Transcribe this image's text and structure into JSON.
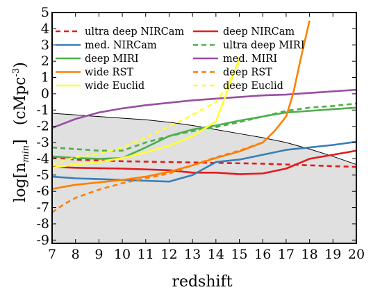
{
  "chart_data": {
    "type": "line",
    "xlabel": "redshift",
    "ylabel_main": "log[n",
    "ylabel_sub": "min",
    "ylabel_close": "]",
    "ylabel_unit_open": "(cMpc",
    "ylabel_unit_sup": "-3",
    "ylabel_unit_close": ")",
    "xlim": [
      7,
      20
    ],
    "ylim": [
      -9.2,
      5
    ],
    "xticks": [
      7,
      8,
      9,
      10,
      11,
      12,
      13,
      14,
      15,
      16,
      17,
      18,
      19,
      20
    ],
    "yticks": [
      5,
      4,
      3,
      2,
      1,
      0,
      -1,
      -2,
      -3,
      -4,
      -5,
      -6,
      -7,
      -8,
      -9
    ],
    "legend_position": "top",
    "shaded_region": {
      "fill": "#e0e0e0",
      "boundary": [
        [
          7,
          -1.2
        ],
        [
          8,
          -1.3
        ],
        [
          9,
          -1.4
        ],
        [
          10,
          -1.5
        ],
        [
          11,
          -1.6
        ],
        [
          12,
          -1.75
        ],
        [
          13,
          -1.95
        ],
        [
          14,
          -2.2
        ],
        [
          15,
          -2.45
        ],
        [
          16,
          -2.7
        ],
        [
          17,
          -3.0
        ],
        [
          18,
          -3.4
        ],
        [
          19,
          -3.85
        ],
        [
          20,
          -4.35
        ]
      ]
    },
    "series": [
      {
        "name": "ultra deep NIRCam",
        "color": "#e41a1c",
        "dash": true,
        "points": [
          [
            7,
            -3.9
          ],
          [
            8,
            -4.05
          ],
          [
            10,
            -4.15
          ],
          [
            12,
            -4.2
          ],
          [
            14,
            -4.25
          ],
          [
            16,
            -4.3
          ],
          [
            18,
            -4.4
          ],
          [
            20,
            -4.5
          ]
        ]
      },
      {
        "name": "deep NIRCam",
        "color": "#e41a1c",
        "dash": false,
        "points": [
          [
            7,
            -4.5
          ],
          [
            8,
            -4.55
          ],
          [
            10,
            -4.6
          ],
          [
            12,
            -4.7
          ],
          [
            13,
            -4.85
          ],
          [
            14,
            -4.85
          ],
          [
            15,
            -4.95
          ],
          [
            16,
            -4.9
          ],
          [
            17,
            -4.6
          ],
          [
            18,
            -4.0
          ],
          [
            19,
            -3.75
          ],
          [
            20,
            -3.5
          ]
        ]
      },
      {
        "name": "med. NIRCam",
        "color": "#377eb8",
        "dash": false,
        "points": [
          [
            7,
            -5.1
          ],
          [
            8,
            -5.2
          ],
          [
            9,
            -5.25
          ],
          [
            10,
            -5.3
          ],
          [
            11,
            -5.35
          ],
          [
            12,
            -5.4
          ],
          [
            13,
            -5.0
          ],
          [
            14,
            -4.2
          ],
          [
            15,
            -4.05
          ],
          [
            16,
            -3.75
          ],
          [
            17,
            -3.45
          ],
          [
            18,
            -3.3
          ],
          [
            19,
            -3.15
          ],
          [
            20,
            -2.95
          ]
        ]
      },
      {
        "name": "ultra deep MIRI",
        "color": "#4daf4a",
        "dash": true,
        "points": [
          [
            7,
            -3.3
          ],
          [
            8,
            -3.4
          ],
          [
            9,
            -3.5
          ],
          [
            10,
            -3.5
          ],
          [
            11,
            -3.0
          ],
          [
            12,
            -2.6
          ],
          [
            13,
            -2.3
          ],
          [
            14,
            -2.05
          ],
          [
            15,
            -1.75
          ],
          [
            16,
            -1.4
          ],
          [
            17,
            -1.05
          ],
          [
            18,
            -0.85
          ],
          [
            19,
            -0.75
          ],
          [
            20,
            -0.6
          ]
        ]
      },
      {
        "name": "deep MIRI",
        "color": "#4daf4a",
        "dash": false,
        "points": [
          [
            7,
            -3.85
          ],
          [
            8,
            -3.95
          ],
          [
            9,
            -4.0
          ],
          [
            10,
            -3.95
          ],
          [
            11,
            -3.3
          ],
          [
            12,
            -2.6
          ],
          [
            13,
            -2.2
          ],
          [
            14,
            -1.95
          ],
          [
            15,
            -1.65
          ],
          [
            16,
            -1.4
          ],
          [
            17,
            -1.15
          ],
          [
            18,
            -1.05
          ],
          [
            19,
            -0.95
          ],
          [
            20,
            -0.85
          ]
        ]
      },
      {
        "name": "med. MIRI",
        "color": "#984ea3",
        "dash": false,
        "points": [
          [
            7,
            -2.1
          ],
          [
            8,
            -1.55
          ],
          [
            9,
            -1.15
          ],
          [
            10,
            -0.9
          ],
          [
            11,
            -0.7
          ],
          [
            12,
            -0.55
          ],
          [
            13,
            -0.4
          ],
          [
            14,
            -0.3
          ],
          [
            15,
            -0.2
          ],
          [
            16,
            -0.1
          ],
          [
            17,
            -0.05
          ],
          [
            18,
            0.05
          ],
          [
            19,
            0.15
          ],
          [
            20,
            0.25
          ]
        ]
      },
      {
        "name": "wide RST",
        "color": "#ff7f00",
        "dash": false,
        "points": [
          [
            7,
            -5.85
          ],
          [
            8,
            -5.6
          ],
          [
            9,
            -5.45
          ],
          [
            10,
            -5.3
          ],
          [
            11,
            -5.1
          ],
          [
            12,
            -4.8
          ],
          [
            13,
            -4.4
          ],
          [
            14,
            -3.95
          ],
          [
            15,
            -3.55
          ],
          [
            16,
            -3.0
          ],
          [
            16.5,
            -2.3
          ],
          [
            17,
            -1.4
          ],
          [
            17.3,
            0
          ],
          [
            17.6,
            2.0
          ],
          [
            18,
            4.5
          ]
        ]
      },
      {
        "name": "deep RST",
        "color": "#ff7f00",
        "dash": true,
        "points": [
          [
            7,
            -7.3
          ],
          [
            7.5,
            -6.8
          ],
          [
            8,
            -6.4
          ],
          [
            9,
            -5.9
          ],
          [
            10,
            -5.5
          ],
          [
            11,
            -5.2
          ],
          [
            12,
            -4.9
          ],
          [
            13,
            -4.4
          ],
          [
            14,
            -3.9
          ],
          [
            15,
            -3.5
          ],
          [
            16,
            -3.0
          ]
        ]
      },
      {
        "name": "wide Euclid",
        "color": "#ffff33",
        "dash": false,
        "points": [
          [
            7,
            -4.55
          ],
          [
            8,
            -4.35
          ],
          [
            9,
            -4.2
          ],
          [
            10,
            -3.95
          ],
          [
            11,
            -3.6
          ],
          [
            12,
            -3.2
          ],
          [
            13,
            -2.6
          ],
          [
            14,
            -1.7
          ],
          [
            14.5,
            0.2
          ],
          [
            15,
            2.2
          ]
        ]
      },
      {
        "name": "deep Euclid",
        "color": "#ffff33",
        "dash": true,
        "points": [
          [
            7,
            -4.35
          ],
          [
            8,
            -3.9
          ],
          [
            9,
            -3.7
          ],
          [
            10,
            -3.3
          ],
          [
            11,
            -2.7
          ],
          [
            12,
            -2.0
          ],
          [
            13,
            -1.3
          ],
          [
            14,
            -0.5
          ],
          [
            14.5,
            0.5
          ],
          [
            15,
            2.0
          ]
        ]
      }
    ]
  }
}
